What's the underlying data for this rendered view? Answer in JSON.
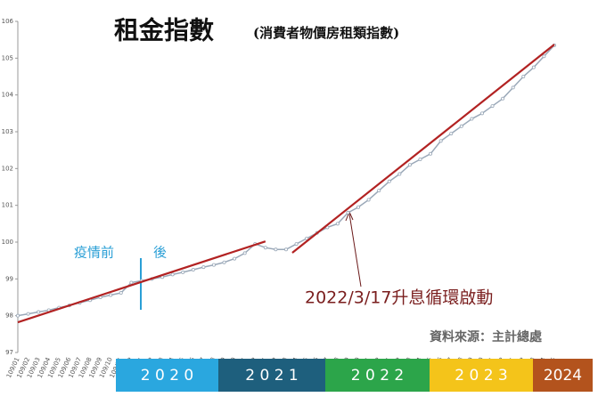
{
  "chart_data": {
    "type": "line",
    "title": "租金指數",
    "subtitle": "(消費者物價房租類指數)",
    "categories": [
      "109/01",
      "109/02",
      "109/03",
      "109/04",
      "109/05",
      "109/06",
      "109/07",
      "109/08",
      "109/09",
      "109/10",
      "109/11",
      "109/12",
      "110/01",
      "110/02",
      "110/03",
      "110/04",
      "110/05",
      "110/06",
      "110/07",
      "110/08",
      "110/09",
      "110/10",
      "110/11",
      "110/12",
      "111/01",
      "111/02",
      "111/03",
      "111/04",
      "111/05",
      "111/06",
      "111/07",
      "111/08",
      "111/09",
      "111/10",
      "111/11",
      "111/12",
      "112/01",
      "112/02",
      "112/03",
      "112/04",
      "112/05",
      "112/06",
      "112/07",
      "112/08",
      "112/09",
      "112/10",
      "112/11",
      "112/12",
      "113/01",
      "113/02",
      "113/03",
      "113/04",
      "113/05"
    ],
    "series": [
      {
        "name": "房租類指數",
        "color": "#9aa8b8",
        "values": [
          98.0,
          98.05,
          98.1,
          98.15,
          98.22,
          98.28,
          98.35,
          98.42,
          98.5,
          98.56,
          98.62,
          98.9,
          98.95,
          99.0,
          99.05,
          99.12,
          99.18,
          99.25,
          99.32,
          99.38,
          99.45,
          99.55,
          99.7,
          99.95,
          99.85,
          99.8,
          99.8,
          99.95,
          100.1,
          100.25,
          100.4,
          100.5,
          100.8,
          100.95,
          101.15,
          101.4,
          101.65,
          101.85,
          102.1,
          102.25,
          102.4,
          102.75,
          102.95,
          103.15,
          103.35,
          103.5,
          103.7,
          103.9,
          104.2,
          104.5,
          104.75,
          105.05,
          105.35
        ]
      }
    ],
    "trend_lines": [
      {
        "color": "#b22222",
        "x": [
          0,
          24
        ],
        "values": [
          97.82,
          100.02
        ]
      },
      {
        "color": "#b22222",
        "x": [
          26.6,
          52
        ],
        "values": [
          99.71,
          105.37
        ]
      }
    ],
    "ylim": [
      97,
      106
    ],
    "yticks": [
      97,
      98,
      99,
      100,
      101,
      102,
      103,
      104,
      105,
      106
    ],
    "annotations": {
      "pre": "疫情前",
      "post": "後",
      "rate": "2022/3/17升息循環啟動",
      "source": "資料來源：主計總處"
    },
    "year_bands": [
      {
        "label": "2 0 2 0",
        "color": "#2aa7df"
      },
      {
        "label": "2 0 2 1",
        "color": "#1e5f7d"
      },
      {
        "label": "2 0 2 2",
        "color": "#2ca54a"
      },
      {
        "label": "2 0 2 3",
        "color": "#f4c41a"
      },
      {
        "label": "2024",
        "color": "#b3531d"
      }
    ]
  }
}
